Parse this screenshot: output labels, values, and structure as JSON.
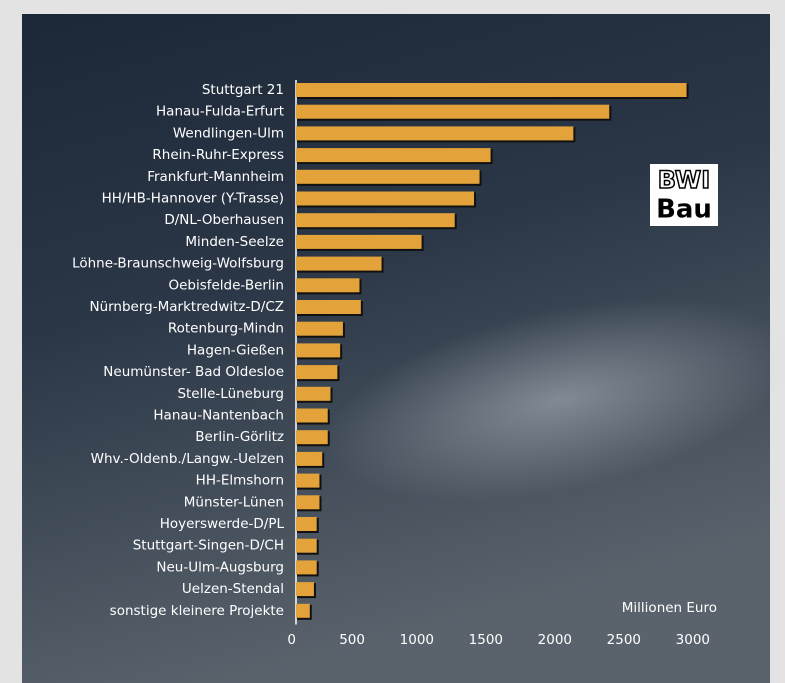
{
  "chart_data": {
    "type": "hbar",
    "x_label": "Millionen Euro",
    "logo": [
      "BWI",
      "Bau"
    ],
    "categories": [
      "Stuttgart 21",
      "Hanau-Fulda-Erfurt",
      "Wendlingen-Ulm",
      "Rhein-Ruhr-Express",
      "Frankfurt-Mannheim",
      "HH/HB-Hannover (Y-Trasse)",
      "D/NL-Oberhausen",
      "Minden-Seelze",
      "Löhne-Braunschweig-Wolfsburg",
      "Oebisfelde-Berlin",
      "Nürnberg-Marktredwitz-D/CZ",
      "Rotenburg-Mindn",
      "Hagen-Gießen",
      "Neumünster- Bad Oldesloe",
      "Stelle-Lüneburg",
      "Hanau-Nantenbach",
      "Berlin-Görlitz",
      "Whv.-Oldenb./Langw.-Uelzen",
      "HH-Elmshorn",
      "Münster-Lünen",
      "Hoyerswerde-D/PL",
      "Stuttgart-Singen-D/CH",
      "Neu-Ulm-Augsburg",
      "Uelzen-Stendal",
      "sonstige kleinere Projekte"
    ],
    "values": [
      2830,
      2270,
      2010,
      1410,
      1330,
      1290,
      1150,
      910,
      620,
      460,
      470,
      340,
      320,
      300,
      250,
      230,
      230,
      190,
      170,
      170,
      150,
      150,
      150,
      130,
      100
    ],
    "color": "#e4a33a",
    "xlim": [
      0,
      3000
    ],
    "xticks": [
      0,
      500,
      1000,
      1500,
      2000,
      2500,
      3000
    ]
  }
}
